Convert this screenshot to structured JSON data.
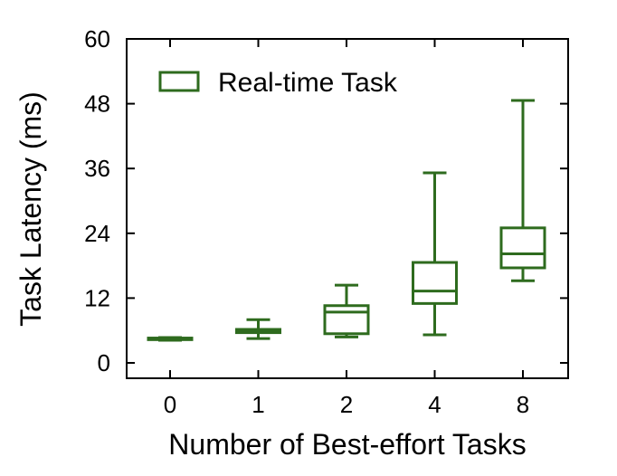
{
  "chart_data": {
    "type": "box",
    "title": "",
    "xlabel": "Number of Best-effort Tasks",
    "ylabel": "Task Latency (ms)",
    "ylim": [
      0,
      60
    ],
    "yticks": [
      0,
      12,
      24,
      36,
      48,
      60
    ],
    "categories": [
      "0",
      "1",
      "2",
      "4",
      "8"
    ],
    "grid": false,
    "legend": {
      "position": "top-left",
      "entries": [
        "Real-time Task"
      ]
    },
    "color": "#2e6b1e",
    "series": [
      {
        "name": "Real-time Task",
        "boxes": [
          {
            "category": "0",
            "whisker_low": 4.2,
            "q1": 4.3,
            "median": 4.4,
            "q3": 4.6,
            "whisker_high": 4.7
          },
          {
            "category": "1",
            "whisker_low": 4.5,
            "q1": 5.6,
            "median": 5.9,
            "q3": 6.2,
            "whisker_high": 8.0
          },
          {
            "category": "2",
            "whisker_low": 4.8,
            "q1": 5.4,
            "median": 9.4,
            "q3": 10.6,
            "whisker_high": 14.4
          },
          {
            "category": "4",
            "whisker_low": 5.2,
            "q1": 11.0,
            "median": 13.3,
            "q3": 18.6,
            "whisker_high": 35.2
          },
          {
            "category": "8",
            "whisker_low": 15.2,
            "q1": 17.6,
            "median": 20.2,
            "q3": 25.0,
            "whisker_high": 48.6
          }
        ]
      }
    ]
  }
}
